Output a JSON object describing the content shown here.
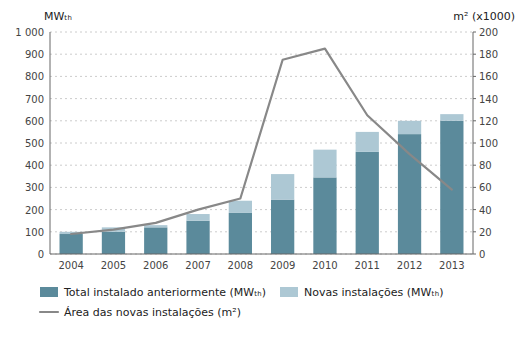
{
  "chart_data": {
    "type": "bar",
    "stacked": true,
    "categories": [
      "2004",
      "2005",
      "2006",
      "2007",
      "2008",
      "2009",
      "2010",
      "2011",
      "2012",
      "2013"
    ],
    "ylabel": "MWₜₕ",
    "y2label": "m² (x1000)",
    "series": [
      {
        "name": "Total instalado anteriormente (MWₜₕ)",
        "color": "#5b8a9b",
        "values": [
          90,
          100,
          120,
          150,
          185,
          245,
          345,
          460,
          540,
          600
        ]
      },
      {
        "name": "Novas instalações (MWₜₕ)",
        "color": "#adc8d4",
        "values": [
          10,
          20,
          10,
          30,
          55,
          115,
          125,
          90,
          60,
          30
        ]
      },
      {
        "name": "Área das novas instalações (m²)",
        "type": "line",
        "axis": "y2",
        "color": "#888888",
        "values": [
          18,
          22,
          28,
          40,
          50,
          175,
          185,
          125,
          90,
          58
        ]
      }
    ],
    "ylim": [
      0,
      1000
    ],
    "yticks": [
      0,
      100,
      200,
      300,
      400,
      500,
      600,
      700,
      800,
      900,
      {
        "value": 1000,
        "label": "1 000"
      }
    ],
    "y2lim": [
      0,
      200
    ],
    "y2ticks": [
      0,
      20,
      40,
      60,
      80,
      100,
      120,
      140,
      160,
      180,
      200
    ],
    "grid": true,
    "legend": "bottom"
  }
}
